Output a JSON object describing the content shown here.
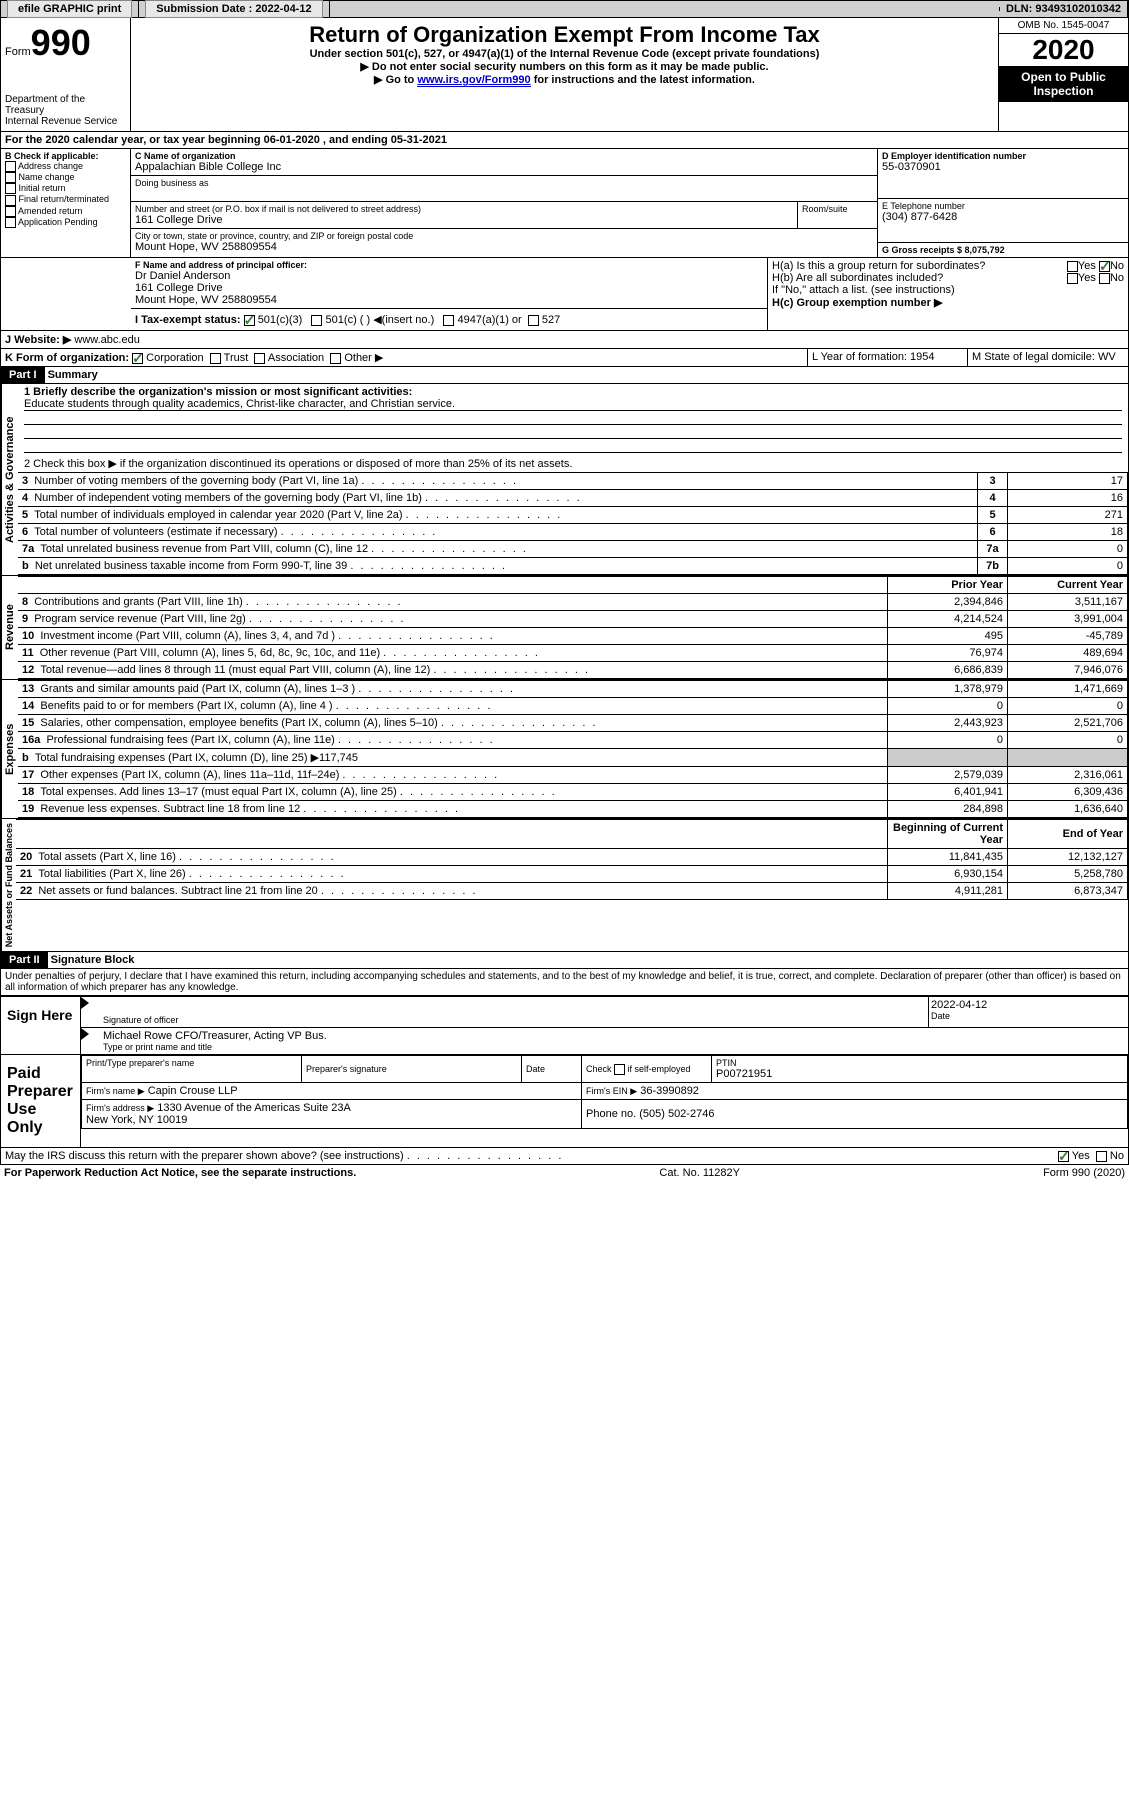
{
  "topbar": {
    "efile_label": "efile GRAPHIC print",
    "submission_label": "Submission Date : 2022-04-12",
    "dln_label": "DLN: 93493102010342"
  },
  "header": {
    "form_label": "Form",
    "form_no": "990",
    "title": "Return of Organization Exempt From Income Tax",
    "subtitle": "Under section 501(c), 527, or 4947(a)(1) of the Internal Revenue Code (except private foundations)",
    "inst1": "▶ Do not enter social security numbers on this form as it may be made public.",
    "inst2_pre": "▶ Go to ",
    "inst2_link": "www.irs.gov/Form990",
    "inst2_post": " for instructions and the latest information.",
    "omb": "OMB No. 1545-0047",
    "year": "2020",
    "inspect": "Open to Public Inspection",
    "dept": "Department of the Treasury\nInternal Revenue Service"
  },
  "period": "For the 2020 calendar year, or tax year beginning 06-01-2020    , and ending 05-31-2021",
  "boxB": {
    "label": "B Check if applicable:",
    "opts": [
      "Address change",
      "Name change",
      "Initial return",
      "Final return/terminated",
      "Amended return",
      "Application Pending"
    ]
  },
  "boxC": {
    "label": "C Name of organization",
    "name": "Appalachian Bible College Inc",
    "dba_label": "Doing business as",
    "addr_label": "Number and street (or P.O. box if mail is not delivered to street address)",
    "room_label": "Room/suite",
    "addr": "161 College Drive",
    "city_label": "City or town, state or province, country, and ZIP or foreign postal code",
    "city": "Mount Hope, WV  258809554"
  },
  "boxD": {
    "label": "D Employer identification number",
    "val": "55-0370901"
  },
  "boxE": {
    "label": "E Telephone number",
    "val": "(304) 877-6428"
  },
  "boxG": {
    "label": "G Gross receipts $ 8,075,792"
  },
  "boxF": {
    "label": "F  Name and address of principal officer:",
    "name": "Dr Daniel Anderson",
    "addr1": "161 College Drive",
    "addr2": "Mount Hope, WV  258809554"
  },
  "boxH": {
    "a_label": "H(a)  Is this a group return for subordinates?",
    "b_label": "H(b)  Are all subordinates included?",
    "note": "If \"No,\" attach a list. (see instructions)",
    "c_label": "H(c)  Group exemption number ▶",
    "yes": "Yes",
    "no": "No"
  },
  "boxI": {
    "label": "I  Tax-exempt status:",
    "opts": [
      "501(c)(3)",
      "501(c) (  ) ◀(insert no.)",
      "4947(a)(1) or",
      "527"
    ]
  },
  "boxJ": {
    "label": "J  Website: ▶",
    "val": "www.abc.edu"
  },
  "boxK": {
    "label": "K Form of organization:",
    "opts": [
      "Corporation",
      "Trust",
      "Association",
      "Other ▶"
    ]
  },
  "boxL": {
    "label": "L Year of formation: 1954"
  },
  "boxM": {
    "label": "M State of legal domicile: WV"
  },
  "part1": {
    "hdr": "Part I",
    "title": "Summary",
    "q1": "1  Briefly describe the organization's mission or most significant activities:",
    "q1ans": "Educate students through quality academics, Christ-like character, and Christian service.",
    "q2": "2    Check this box ▶        if the organization discontinued its operations or disposed of more than 25% of its net assets.",
    "gov_label": "Activities & Governance",
    "rev_label": "Revenue",
    "exp_label": "Expenses",
    "net_label": "Net Assets or Fund Balances",
    "prior_hdr": "Prior Year",
    "curr_hdr": "Current Year",
    "begin_hdr": "Beginning of Current Year",
    "end_hdr": "End of Year",
    "lines_gov": [
      {
        "n": "3",
        "txt": "Number of voting members of the governing body (Part VI, line 1a)",
        "box": "3",
        "v": "17"
      },
      {
        "n": "4",
        "txt": "Number of independent voting members of the governing body (Part VI, line 1b)",
        "box": "4",
        "v": "16"
      },
      {
        "n": "5",
        "txt": "Total number of individuals employed in calendar year 2020 (Part V, line 2a)",
        "box": "5",
        "v": "271"
      },
      {
        "n": "6",
        "txt": "Total number of volunteers (estimate if necessary)",
        "box": "6",
        "v": "18"
      },
      {
        "n": "7a",
        "txt": "Total unrelated business revenue from Part VIII, column (C), line 12",
        "box": "7a",
        "v": "0"
      },
      {
        "n": "b",
        "txt": "Net unrelated business taxable income from Form 990-T, line 39",
        "box": "7b",
        "v": "0"
      }
    ],
    "lines_rev": [
      {
        "n": "8",
        "txt": "Contributions and grants (Part VIII, line 1h)",
        "p": "2,394,846",
        "c": "3,511,167"
      },
      {
        "n": "9",
        "txt": "Program service revenue (Part VIII, line 2g)",
        "p": "4,214,524",
        "c": "3,991,004"
      },
      {
        "n": "10",
        "txt": "Investment income (Part VIII, column (A), lines 3, 4, and 7d )",
        "p": "495",
        "c": "-45,789"
      },
      {
        "n": "11",
        "txt": "Other revenue (Part VIII, column (A), lines 5, 6d, 8c, 9c, 10c, and 11e)",
        "p": "76,974",
        "c": "489,694"
      },
      {
        "n": "12",
        "txt": "Total revenue—add lines 8 through 11 (must equal Part VIII, column (A), line 12)",
        "p": "6,686,839",
        "c": "7,946,076"
      }
    ],
    "lines_exp": [
      {
        "n": "13",
        "txt": "Grants and similar amounts paid (Part IX, column (A), lines 1–3 )",
        "p": "1,378,979",
        "c": "1,471,669"
      },
      {
        "n": "14",
        "txt": "Benefits paid to or for members (Part IX, column (A), line 4 )",
        "p": "0",
        "c": "0"
      },
      {
        "n": "15",
        "txt": "Salaries, other compensation, employee benefits (Part IX, column (A), lines 5–10)",
        "p": "2,443,923",
        "c": "2,521,706"
      },
      {
        "n": "16a",
        "txt": "Professional fundraising fees (Part IX, column (A), line 11e)",
        "p": "0",
        "c": "0"
      },
      {
        "n": "b",
        "txt": "Total fundraising expenses (Part IX, column (D), line 25) ▶117,745",
        "p": "",
        "c": ""
      },
      {
        "n": "17",
        "txt": "Other expenses (Part IX, column (A), lines 11a–11d, 11f–24e)",
        "p": "2,579,039",
        "c": "2,316,061"
      },
      {
        "n": "18",
        "txt": "Total expenses. Add lines 13–17 (must equal Part IX, column (A), line 25)",
        "p": "6,401,941",
        "c": "6,309,436"
      },
      {
        "n": "19",
        "txt": "Revenue less expenses. Subtract line 18 from line 12",
        "p": "284,898",
        "c": "1,636,640"
      }
    ],
    "lines_net": [
      {
        "n": "20",
        "txt": "Total assets (Part X, line 16)",
        "p": "11,841,435",
        "c": "12,132,127"
      },
      {
        "n": "21",
        "txt": "Total liabilities (Part X, line 26)",
        "p": "6,930,154",
        "c": "5,258,780"
      },
      {
        "n": "22",
        "txt": "Net assets or fund balances. Subtract line 21 from line 20",
        "p": "4,911,281",
        "c": "6,873,347"
      }
    ]
  },
  "part2": {
    "hdr": "Part II",
    "title": "Signature Block",
    "penalty": "Under penalties of perjury, I declare that I have examined this return, including accompanying schedules and statements, and to the best of my knowledge and belief, it is true, correct, and complete. Declaration of preparer (other than officer) is based on all information of which preparer has any knowledge.",
    "sign_here": "Sign Here",
    "sig_officer": "Signature of officer",
    "date_label": "Date",
    "sig_date": "2022-04-12",
    "officer_name": "Michael Rowe  CFO/Treasurer, Acting VP Bus.",
    "type_label": "Type or print name and title",
    "paid": "Paid Preparer Use Only",
    "prep_name_label": "Print/Type preparer's name",
    "prep_sig_label": "Preparer's signature",
    "check_label": "Check          if self-employed",
    "ptin_label": "PTIN",
    "ptin": "P00721951",
    "firm_name_label": "Firm's name     ▶",
    "firm_name": "Capin Crouse LLP",
    "firm_ein_label": "Firm's EIN ▶",
    "firm_ein": "36-3990892",
    "firm_addr_label": "Firm's address ▶",
    "firm_addr": "1330 Avenue of the Americas Suite 23A\nNew York, NY  10019",
    "phone_label": "Phone no. (505) 502-2746",
    "discuss": "May the IRS discuss this return with the preparer shown above? (see instructions)"
  },
  "footer": {
    "left": "For Paperwork Reduction Act Notice, see the separate instructions.",
    "mid": "Cat. No. 11282Y",
    "right": "Form 990 (2020)"
  }
}
